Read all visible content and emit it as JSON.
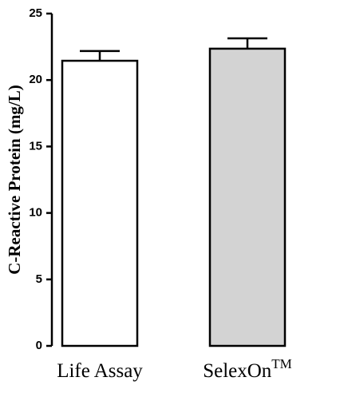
{
  "chart_data": {
    "type": "bar",
    "y_label": "C-Reactive Protein (mg/L)",
    "categories": [
      "Life Assay",
      "SelexOn"
    ],
    "category_superscripts": [
      null,
      "TM"
    ],
    "values": [
      21.45,
      22.36
    ],
    "errors": [
      0.73,
      0.78
    ],
    "colors": [
      "#ffffff",
      "#d3d3d3"
    ],
    "ylim": [
      0,
      25
    ],
    "yticks": [
      0,
      5,
      10,
      15,
      20,
      25
    ],
    "grid": false
  }
}
